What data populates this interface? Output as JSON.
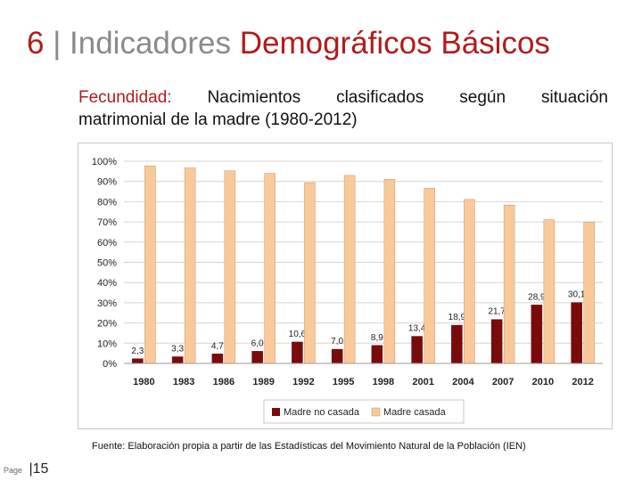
{
  "slide": {
    "title_number": "6",
    "title_separator": "|",
    "title_light": "Indicadores",
    "title_strong": "Demográficos Básicos",
    "subtitle_lead": "Fecundidad:",
    "subtitle_rest_line1": [
      "Nacimientos",
      "clasificados",
      "según",
      "situación"
    ],
    "subtitle_line2": "matrimonial de la madre (1980-2012)",
    "source": "Fuente: Elaboración propia a partir de las Estadísticas del Movimiento Natural de la Población (IEN)",
    "page_label": "Page",
    "page_number": "15"
  },
  "chart_data": {
    "type": "bar",
    "stacking": "grouped",
    "title": "",
    "xlabel": "",
    "ylabel": "",
    "ylim": [
      0,
      100
    ],
    "y_ticks": [
      "0%",
      "10%",
      "20%",
      "30%",
      "40%",
      "50%",
      "60%",
      "70%",
      "80%",
      "90%",
      "100%"
    ],
    "categories": [
      "1980",
      "1983",
      "1986",
      "1989",
      "1992",
      "1995",
      "1998",
      "2001",
      "2004",
      "2007",
      "2010",
      "2012"
    ],
    "series": [
      {
        "name": "Madre no casada",
        "color": "#7b0a0a",
        "values": [
          2.3,
          3.3,
          4.7,
          6.0,
          10.6,
          7.0,
          8.9,
          13.4,
          18.9,
          21.7,
          28.9,
          30.1
        ],
        "labels": [
          "2,3",
          "3,3",
          "4,7",
          "6,0",
          "10,6",
          "7,0",
          "8,9",
          "13,4",
          "18,9",
          "21,7",
          "28,9",
          "30,1"
        ]
      },
      {
        "name": "Madre casada",
        "color": "#f9c99a",
        "values": [
          97.7,
          96.7,
          95.3,
          94.0,
          89.4,
          93.0,
          91.1,
          86.6,
          81.1,
          78.3,
          71.1,
          69.9
        ]
      }
    ],
    "grid": true,
    "legend": "bottom"
  }
}
